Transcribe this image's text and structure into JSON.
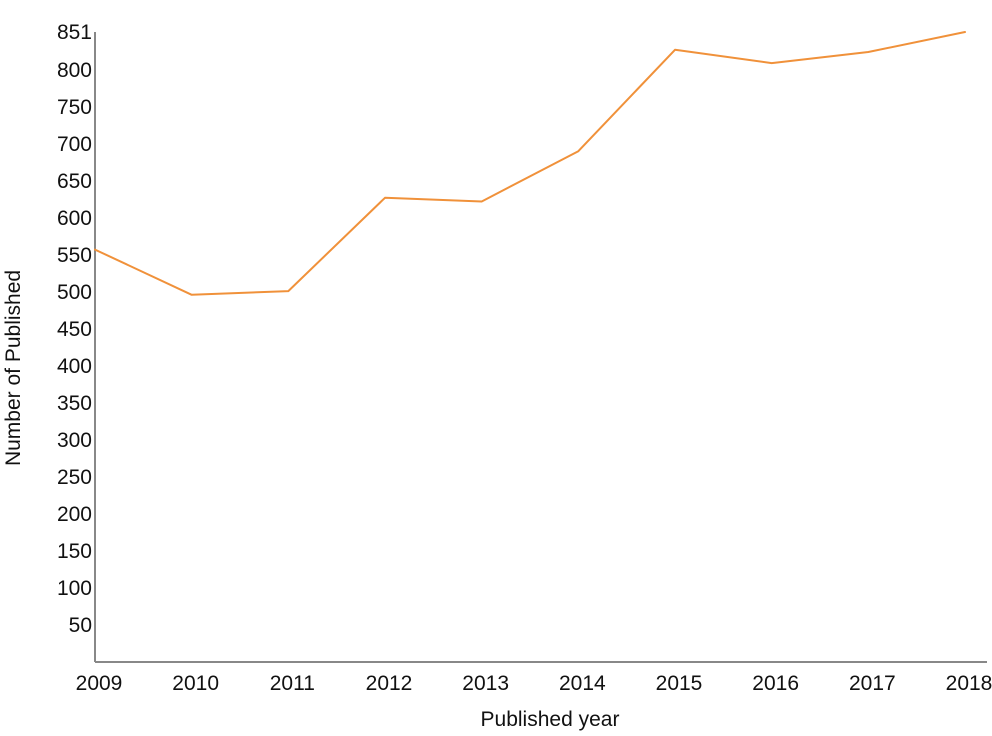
{
  "chart_data": {
    "type": "line",
    "xlabel": "Published year",
    "ylabel": "Number of Published",
    "x": [
      "2009",
      "2010",
      "2011",
      "2012",
      "2013",
      "2014",
      "2015",
      "2016",
      "2017",
      "2018"
    ],
    "series": [
      {
        "values": [
          557,
          496,
          501,
          627,
          622,
          690,
          827,
          809,
          824,
          851
        ],
        "color": "#f0913a"
      }
    ],
    "ylim": [
      0,
      851
    ],
    "yticks": [
      50,
      100,
      150,
      200,
      250,
      300,
      350,
      400,
      450,
      500,
      550,
      600,
      650,
      700,
      750,
      800,
      851
    ],
    "grid": false,
    "axis_color": "#888888"
  }
}
